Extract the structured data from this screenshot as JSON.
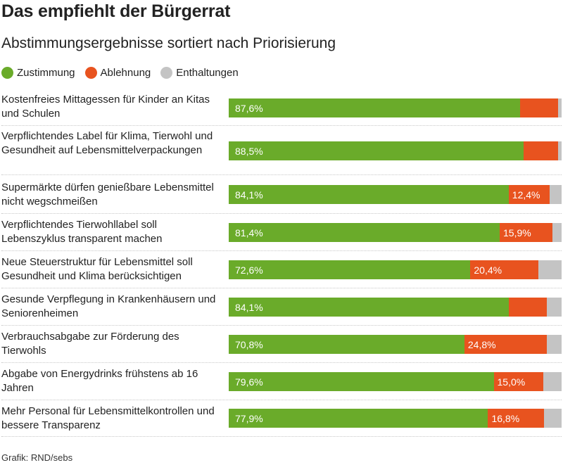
{
  "title": "Das empfiehlt der Bürgerrat",
  "subtitle": "Abstimmungsergebnisse sortiert nach Priorisierung",
  "source": "Grafik: RND/sebs",
  "colors": {
    "zustimmung": "#6aab2a",
    "ablehnung": "#e8531f",
    "enthaltungen": "#c4c4c4"
  },
  "chart_data": {
    "type": "bar",
    "orientation": "horizontal",
    "stacked": true,
    "normalized_to": 100,
    "legend": [
      "Zustimmung",
      "Ablehnung",
      "Enthaltungen"
    ],
    "legend_position": "top-left",
    "categories": [
      "Kostenfreies Mittagessen für Kinder an Kitas und Schulen",
      "Verpflichtendes Label für Klima, Tierwohl und Gesundheit auf Lebensmittelverpackungen",
      "Supermärkte dürfen genießbare Lebensmittel nicht wegschmeißen",
      "Verpflichtendes Tierwohllabel soll Lebenszyklus transparent machen",
      "Neue Steuerstruktur für Lebensmittel soll Gesundheit und Klima berücksichtigen",
      "Gesunde Verpflegung in Krankenhäusern und Seniorenheimen",
      "Verbrauchsabgabe zur Förderung des Tierwohls",
      "Abgabe von Energydrinks frühstens ab 16 Jahren",
      "Mehr Personal für Lebensmittelkontrollen und bessere Transparenz"
    ],
    "series": [
      {
        "name": "Zustimmung",
        "values": [
          87.6,
          88.5,
          84.1,
          81.4,
          72.6,
          84.1,
          70.8,
          79.6,
          77.9
        ],
        "labels": [
          "87,6%",
          "88,5%",
          "84,1%",
          "81,4%",
          "72,6%",
          "84,1%",
          "70,8%",
          "79,6%",
          "77,9%"
        ]
      },
      {
        "name": "Ablehnung",
        "values": [
          11.3,
          10.5,
          12.4,
          15.9,
          20.4,
          11.5,
          24.8,
          15.0,
          16.8
        ],
        "labels": [
          "",
          "",
          "12,4%",
          "15,9%",
          "20,4%",
          "",
          "24,8%",
          "15,0%",
          "16,8%"
        ]
      },
      {
        "name": "Enthaltungen",
        "values": [
          1.1,
          1.0,
          3.5,
          2.7,
          7.0,
          4.4,
          4.4,
          5.4,
          5.3
        ],
        "labels": [
          "",
          "",
          "",
          "",
          "",
          "",
          "",
          "",
          ""
        ]
      }
    ]
  }
}
